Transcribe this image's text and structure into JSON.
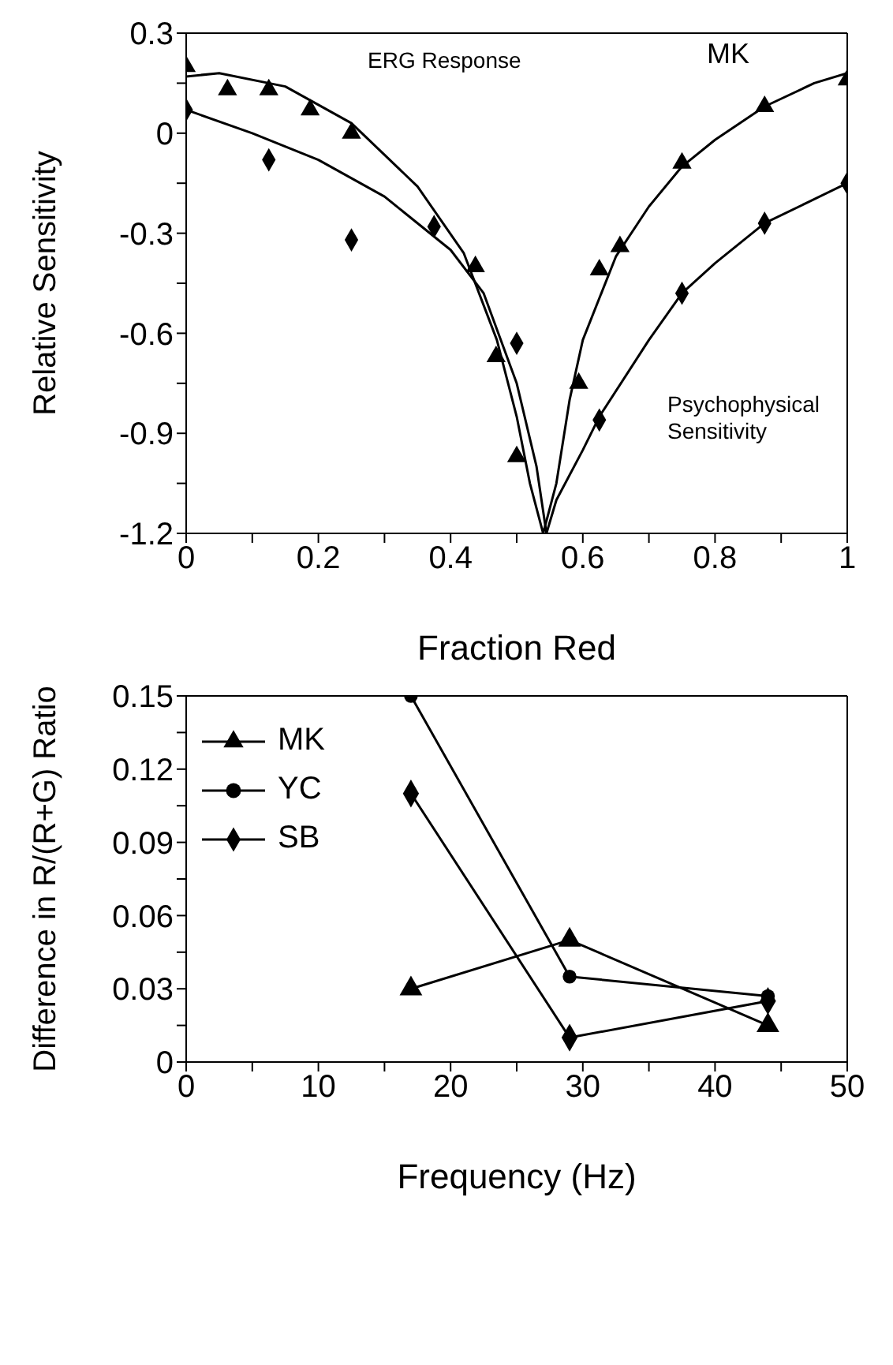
{
  "chart_data": [
    {
      "type": "scatter",
      "xlabel": "Fraction Red",
      "ylabel": "Relative Sensitivity",
      "xlim": [
        0,
        1
      ],
      "ylim": [
        -1.2,
        0.3
      ],
      "xticks": [
        0,
        {
          "value": 0.1,
          "label": null
        },
        0.2,
        {
          "value": 0.3,
          "label": null
        },
        0.4,
        {
          "value": 0.5,
          "label": null
        },
        0.6,
        {
          "value": 0.7,
          "label": null
        },
        0.8,
        {
          "value": 0.9,
          "label": null
        },
        1
      ],
      "yticks": [
        -1.2,
        {
          "value": -1.05,
          "label": null
        },
        -0.9,
        {
          "value": -0.75,
          "label": null
        },
        -0.6,
        {
          "value": -0.45,
          "label": null
        },
        -0.3,
        {
          "value": -0.15,
          "label": null
        },
        0,
        {
          "value": 0.15,
          "label": null
        },
        0.3
      ],
      "grid": false,
      "legend": false,
      "annotations": [
        "ERG Response",
        "MK",
        "Psychophysical Sensitivity"
      ],
      "series": [
        {
          "color": "#000000",
          "marker": "triangle",
          "x": [
            0,
            0.0625,
            0.125,
            0.1875,
            0.25,
            0.4375,
            0.4688,
            0.5,
            0.5938,
            0.625,
            0.6562,
            0.75,
            0.875,
            1
          ],
          "values": [
            0.2,
            0.13,
            0.13,
            0.07,
            0.0,
            -0.4,
            -0.67,
            -0.97,
            -0.75,
            -0.41,
            -0.34,
            -0.09,
            0.08,
            0.16
          ]
        },
        {
          "color": "#000000",
          "marker": "diamond",
          "x": [
            0,
            0.125,
            0.25,
            0.375,
            0.5,
            0.625,
            0.75,
            0.875,
            1
          ],
          "values": [
            0.07,
            -0.08,
            -0.32,
            -0.28,
            -0.63,
            -0.86,
            -0.48,
            -0.27,
            -0.15
          ]
        },
        {
          "type": "line",
          "color": "#000000",
          "marker": "none",
          "x": [
            0,
            0.05,
            0.15,
            0.25,
            0.35,
            0.42,
            0.47,
            0.5,
            0.52,
            0.54,
            0.56,
            0.58,
            0.6,
            0.65,
            0.7,
            0.75,
            0.8,
            0.875,
            0.95,
            1
          ],
          "values": [
            0.17,
            0.18,
            0.14,
            0.03,
            -0.16,
            -0.36,
            -0.62,
            -0.85,
            -1.05,
            -1.2,
            -1.05,
            -0.8,
            -0.62,
            -0.37,
            -0.22,
            -0.1,
            -0.02,
            0.08,
            0.15,
            0.18
          ]
        },
        {
          "type": "line",
          "color": "#000000",
          "marker": "none",
          "x": [
            0,
            0.1,
            0.2,
            0.3,
            0.4,
            0.45,
            0.5,
            0.53,
            0.545,
            0.56,
            0.6,
            0.625,
            0.7,
            0.75,
            0.8,
            0.875,
            1
          ],
          "values": [
            0.07,
            0.0,
            -0.08,
            -0.19,
            -0.35,
            -0.48,
            -0.75,
            -1.0,
            -1.2,
            -1.1,
            -0.95,
            -0.85,
            -0.62,
            -0.48,
            -0.39,
            -0.27,
            -0.15
          ]
        }
      ]
    },
    {
      "type": "line",
      "xlabel": "Frequency (Hz)",
      "ylabel": "Difference in R/(R+G) Ratio",
      "xlim": [
        0,
        50
      ],
      "ylim": [
        0,
        0.15
      ],
      "xticks": [
        0,
        {
          "value": 5,
          "label": null
        },
        10,
        {
          "value": 15,
          "label": null
        },
        20,
        {
          "value": 25,
          "label": null
        },
        30,
        {
          "value": 35,
          "label": null
        },
        40,
        {
          "value": 45,
          "label": null
        },
        50
      ],
      "yticks": [
        0,
        {
          "value": 0.015,
          "label": null
        },
        0.03,
        {
          "value": 0.045,
          "label": null
        },
        0.06,
        {
          "value": 0.075,
          "label": null
        },
        0.09,
        {
          "value": 0.105,
          "label": null
        },
        0.12,
        {
          "value": 0.135,
          "label": null
        },
        0.15
      ],
      "grid": false,
      "legend": "top left",
      "line_style": "solid",
      "x": [
        17,
        29,
        44
      ],
      "series": [
        {
          "name": "MK",
          "color": "#000000",
          "marker": "triangle",
          "values": [
            0.03,
            0.05,
            0.015
          ]
        },
        {
          "name": "YC",
          "color": "#000000",
          "marker": "circle",
          "values": [
            0.15,
            0.035,
            0.027
          ]
        },
        {
          "name": "SB",
          "color": "#000000",
          "marker": "diamond",
          "values": [
            0.11,
            0.01,
            0.025
          ]
        }
      ]
    }
  ]
}
